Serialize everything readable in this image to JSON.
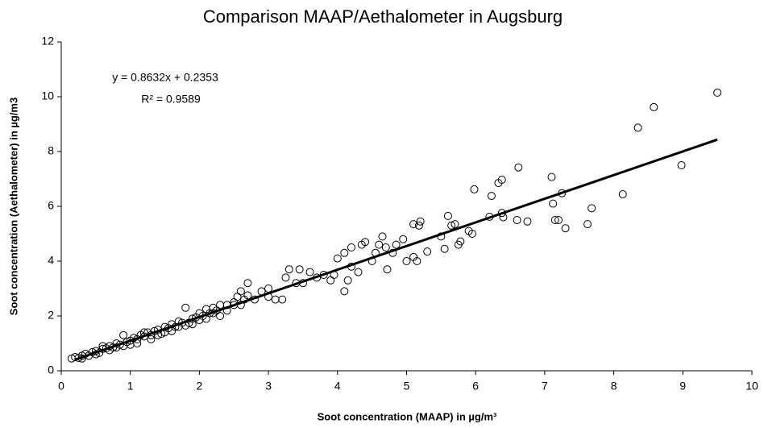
{
  "chart_data": {
    "type": "scatter",
    "title": "Comparison MAAP/Aethalometer in Augsburg",
    "x_label": "Soot concentration (MAAP) in µg/m³",
    "y_label": "Soot concentration (Aethalometer) in µg/m3",
    "annotations": [
      "y = 0.8632x + 0.2353",
      "R² = 0.9589"
    ],
    "trendline": {
      "slope": 0.8632,
      "intercept": 0.2353,
      "xrange": [
        0.2,
        9.5
      ]
    },
    "xlim": [
      0,
      10
    ],
    "ylim": [
      0,
      12
    ],
    "xticks": [
      0,
      1,
      2,
      3,
      4,
      5,
      6,
      7,
      8,
      9,
      10
    ],
    "yticks": [
      0,
      2,
      4,
      6,
      8,
      10,
      12
    ],
    "grid": false,
    "series": [
      {
        "color": "#000000",
        "x": [
          0.15,
          0.2,
          0.25,
          0.3,
          0.35,
          0.4,
          0.45,
          0.5,
          0.55,
          0.6,
          0.65,
          0.7,
          0.75,
          0.8,
          0.85,
          0.9,
          0.95,
          1.0,
          1.05,
          1.1,
          1.15,
          1.2,
          1.25,
          1.3,
          1.35,
          1.4,
          1.45,
          1.5,
          1.55,
          1.6,
          1.65,
          1.7,
          1.75,
          1.8,
          1.85,
          1.9,
          1.95,
          2.0,
          2.05,
          2.1,
          2.15,
          2.2,
          2.25,
          2.3,
          0.3,
          0.5,
          0.7,
          0.9,
          1.1,
          1.3,
          1.5,
          1.7,
          1.9,
          2.1,
          0.6,
          0.8,
          1.0,
          1.2,
          1.4,
          1.6,
          1.8,
          2.0,
          2.2,
          2.4,
          2.5,
          2.55,
          2.65,
          2.7,
          2.3,
          2.4,
          2.5,
          2.6,
          2.6,
          2.7,
          2.8,
          2.9,
          3.0,
          3.0,
          3.1,
          3.2,
          3.25,
          3.3,
          3.4,
          3.45,
          3.5,
          3.6,
          3.7,
          3.8,
          3.9,
          3.95,
          4.0,
          4.1,
          4.1,
          4.15,
          4.2,
          4.2,
          4.3,
          4.35,
          4.4,
          4.5,
          4.55,
          4.6,
          4.65,
          4.7,
          4.72,
          4.8,
          4.85,
          4.95,
          5.0,
          5.1,
          5.1,
          5.15,
          5.18,
          5.2,
          5.3,
          5.5,
          5.55,
          5.6,
          5.65,
          5.7,
          5.75,
          5.78,
          5.9,
          5.95,
          5.98,
          6.2,
          6.23,
          6.33,
          6.38,
          6.38,
          6.4,
          6.6,
          6.62,
          6.75,
          7.1,
          7.12,
          7.15,
          7.2,
          7.25,
          7.3,
          7.62,
          7.68,
          8.13,
          8.35,
          8.58,
          8.98,
          9.5
        ],
        "y": [
          0.45,
          0.5,
          0.47,
          0.55,
          0.62,
          0.55,
          0.68,
          0.72,
          0.65,
          0.8,
          0.82,
          0.9,
          0.85,
          1.0,
          0.95,
          1.3,
          1.05,
          1.1,
          1.2,
          1.15,
          1.3,
          1.25,
          1.4,
          1.3,
          1.45,
          1.5,
          1.35,
          1.6,
          1.55,
          1.7,
          1.6,
          1.8,
          1.75,
          2.3,
          1.75,
          1.9,
          1.95,
          2.1,
          2.0,
          2.25,
          2.1,
          2.3,
          2.2,
          2.4,
          0.45,
          0.6,
          0.75,
          0.9,
          1.0,
          1.15,
          1.4,
          1.6,
          1.7,
          1.9,
          0.9,
          0.85,
          0.95,
          1.4,
          1.3,
          1.45,
          1.65,
          1.85,
          2.1,
          2.2,
          2.4,
          2.7,
          2.6,
          2.75,
          2.0,
          2.4,
          2.5,
          2.9,
          2.4,
          3.2,
          2.6,
          2.9,
          3.0,
          2.7,
          2.6,
          2.6,
          3.4,
          3.7,
          3.2,
          3.7,
          3.2,
          3.6,
          3.4,
          3.5,
          3.3,
          3.5,
          4.1,
          2.9,
          4.3,
          3.3,
          4.5,
          3.8,
          3.6,
          4.6,
          4.7,
          4.0,
          4.3,
          4.6,
          4.9,
          4.5,
          3.7,
          4.3,
          4.6,
          4.8,
          4.0,
          4.15,
          5.35,
          4.0,
          5.3,
          5.45,
          4.35,
          4.9,
          4.45,
          5.65,
          5.3,
          5.35,
          4.6,
          4.72,
          5.1,
          5.0,
          6.62,
          5.62,
          6.38,
          6.85,
          6.97,
          5.76,
          5.6,
          5.5,
          7.42,
          5.45,
          7.07,
          6.1,
          5.5,
          5.5,
          6.48,
          5.2,
          5.35,
          5.93,
          6.44,
          8.87,
          9.62,
          7.5,
          10.15
        ]
      }
    ]
  }
}
